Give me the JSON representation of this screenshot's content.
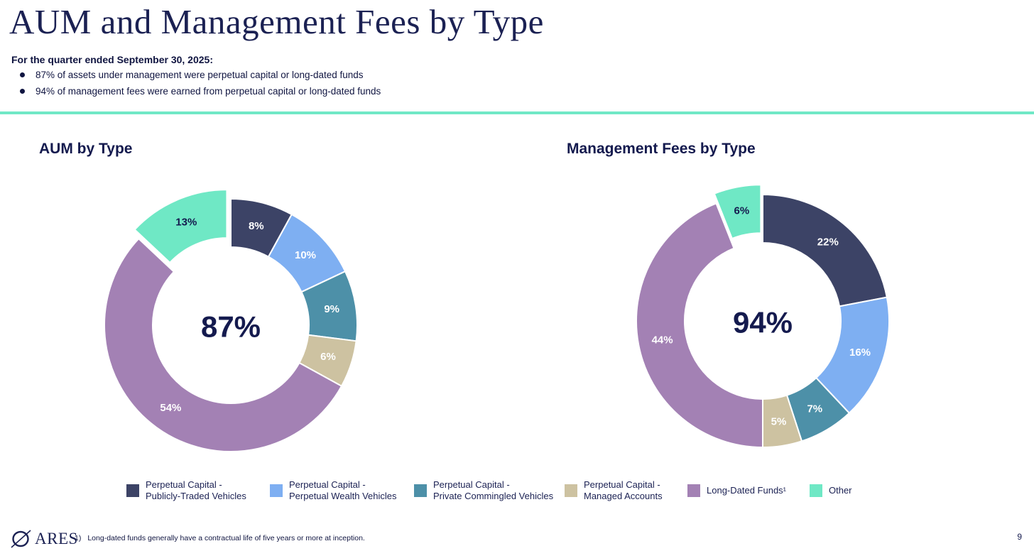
{
  "header": {
    "title": "AUM and Management Fees by Type",
    "intro": "For the quarter ended September 30, 2025:",
    "bullets": [
      "87% of assets under management were perpetual capital or long-dated funds",
      "94% of management fees were earned from perpetual capital or long-dated funds"
    ]
  },
  "colors": {
    "navy": "#3c4366",
    "light_blue": "#7eaff2",
    "teal": "#4d90a8",
    "tan": "#cdc2a1",
    "purple": "#a381b4",
    "mint": "#6fe8c5",
    "dark_text": "#141a4e",
    "divider": "#70e8c6",
    "label_light": "#ffffff"
  },
  "chart_data": [
    {
      "type": "pie",
      "subtype": "donut",
      "title": "AUM by Type",
      "center_label": "87%",
      "categories": [
        "Perpetual Capital - Publicly-Traded Vehicles",
        "Perpetual Capital - Perpetual Wealth Vehicles",
        "Perpetual Capital - Private Commingled Vehicles",
        "Perpetual Capital - Managed Accounts",
        "Long-Dated Funds¹",
        "Other"
      ],
      "values": [
        8,
        10,
        9,
        6,
        54,
        13
      ],
      "slice_labels": [
        "8%",
        "10%",
        "9%",
        "6%",
        "54%",
        "13%"
      ],
      "colors": [
        "#3c4366",
        "#7eaff2",
        "#4d90a8",
        "#cdc2a1",
        "#a381b4",
        "#6fe8c5"
      ],
      "label_colors": [
        "#ffffff",
        "#ffffff",
        "#ffffff",
        "#ffffff",
        "#ffffff",
        "#141a4e"
      ],
      "exploded_index": 5,
      "start_angle_deg": 0,
      "direction": "clockwise",
      "legend_position": "bottom"
    },
    {
      "type": "pie",
      "subtype": "donut",
      "title": "Management Fees by Type",
      "center_label": "94%",
      "categories": [
        "Perpetual Capital - Publicly-Traded Vehicles",
        "Perpetual Capital - Perpetual Wealth Vehicles",
        "Perpetual Capital - Private Commingled Vehicles",
        "Perpetual Capital - Managed Accounts",
        "Long-Dated Funds¹",
        "Other"
      ],
      "values": [
        22,
        16,
        7,
        5,
        44,
        6
      ],
      "slice_labels": [
        "22%",
        "16%",
        "7%",
        "5%",
        "44%",
        "6%"
      ],
      "colors": [
        "#3c4366",
        "#7eaff2",
        "#4d90a8",
        "#cdc2a1",
        "#a381b4",
        "#6fe8c5"
      ],
      "label_colors": [
        "#ffffff",
        "#ffffff",
        "#ffffff",
        "#ffffff",
        "#ffffff",
        "#141a4e"
      ],
      "exploded_index": 5,
      "start_angle_deg": 0,
      "direction": "clockwise",
      "legend_position": "bottom"
    }
  ],
  "legend": {
    "items": [
      {
        "line1": "Perpetual Capital -",
        "line2": "Publicly-Traded Vehicles",
        "color": "#3c4366"
      },
      {
        "line1": "Perpetual Capital -",
        "line2": "Perpetual Wealth Vehicles",
        "color": "#7eaff2"
      },
      {
        "line1": "Perpetual Capital -",
        "line2": "Private Commingled Vehicles",
        "color": "#4d90a8"
      },
      {
        "line1": "Perpetual Capital -",
        "line2": "Managed Accounts",
        "color": "#cdc2a1"
      },
      {
        "line1": "Long-Dated Funds¹",
        "line2": "",
        "color": "#a381b4"
      },
      {
        "line1": "Other",
        "line2": "",
        "color": "#6fe8c5"
      }
    ]
  },
  "footer": {
    "logo_text": "ARES",
    "footnote_num": "1)",
    "footnote_text": "Long-dated funds generally have a contractual life of five years or more at inception.",
    "page_number": "9"
  }
}
